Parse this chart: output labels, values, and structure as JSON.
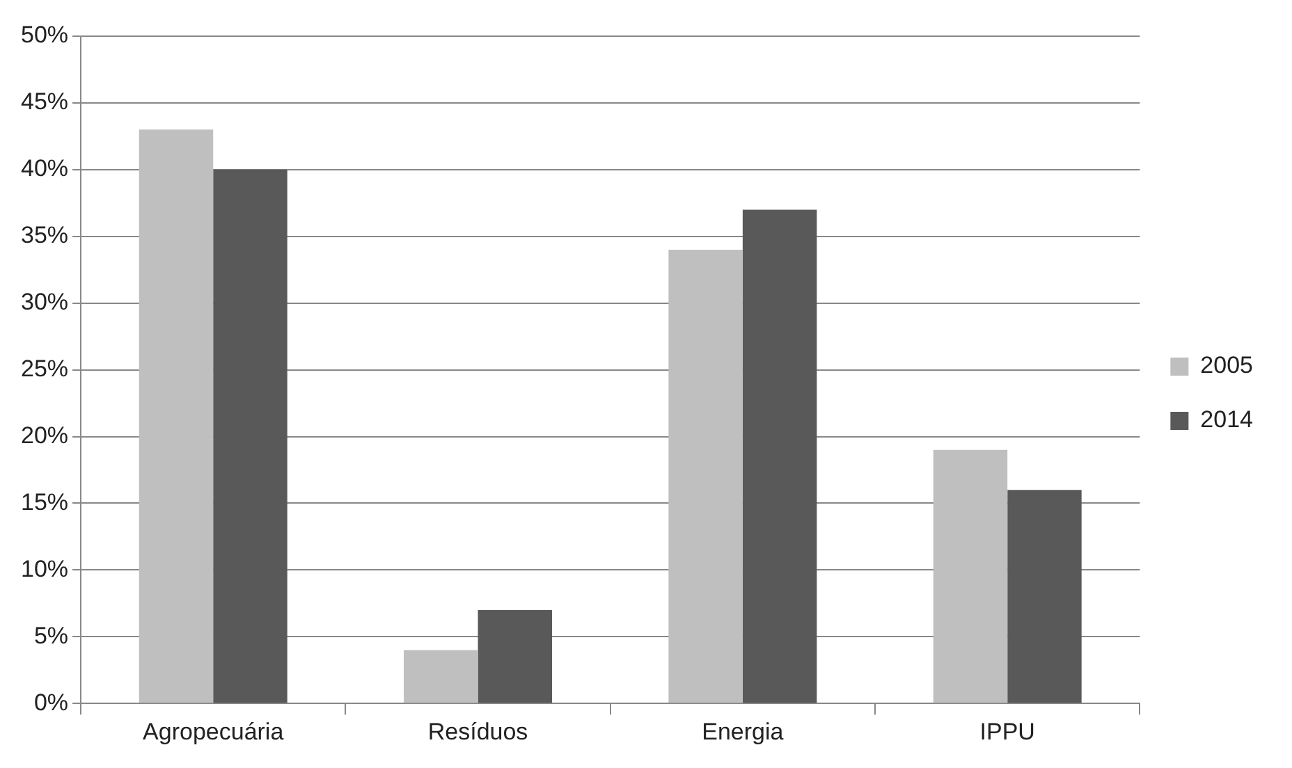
{
  "chart_data": {
    "type": "bar",
    "categories": [
      "Agropecuária",
      "Resíduos",
      "Energia",
      "IPPU"
    ],
    "series": [
      {
        "name": "2005",
        "color": "#bfbfbf",
        "values": [
          43,
          4,
          34,
          19
        ]
      },
      {
        "name": "2014",
        "color": "#595959",
        "values": [
          40,
          7,
          37,
          16
        ]
      }
    ],
    "ylim": [
      0,
      50
    ],
    "yticks": [
      {
        "value": 0,
        "label": "0%"
      },
      {
        "value": 5,
        "label": "5%"
      },
      {
        "value": 10,
        "label": "10%"
      },
      {
        "value": 15,
        "label": "15%"
      },
      {
        "value": 20,
        "label": "20%"
      },
      {
        "value": 25,
        "label": "25%"
      },
      {
        "value": 30,
        "label": "30%"
      },
      {
        "value": 35,
        "label": "35%"
      },
      {
        "value": 40,
        "label": "40%"
      },
      {
        "value": 45,
        "label": "45%"
      },
      {
        "value": 50,
        "label": "50%"
      }
    ],
    "grid": "y",
    "legend": "right"
  }
}
